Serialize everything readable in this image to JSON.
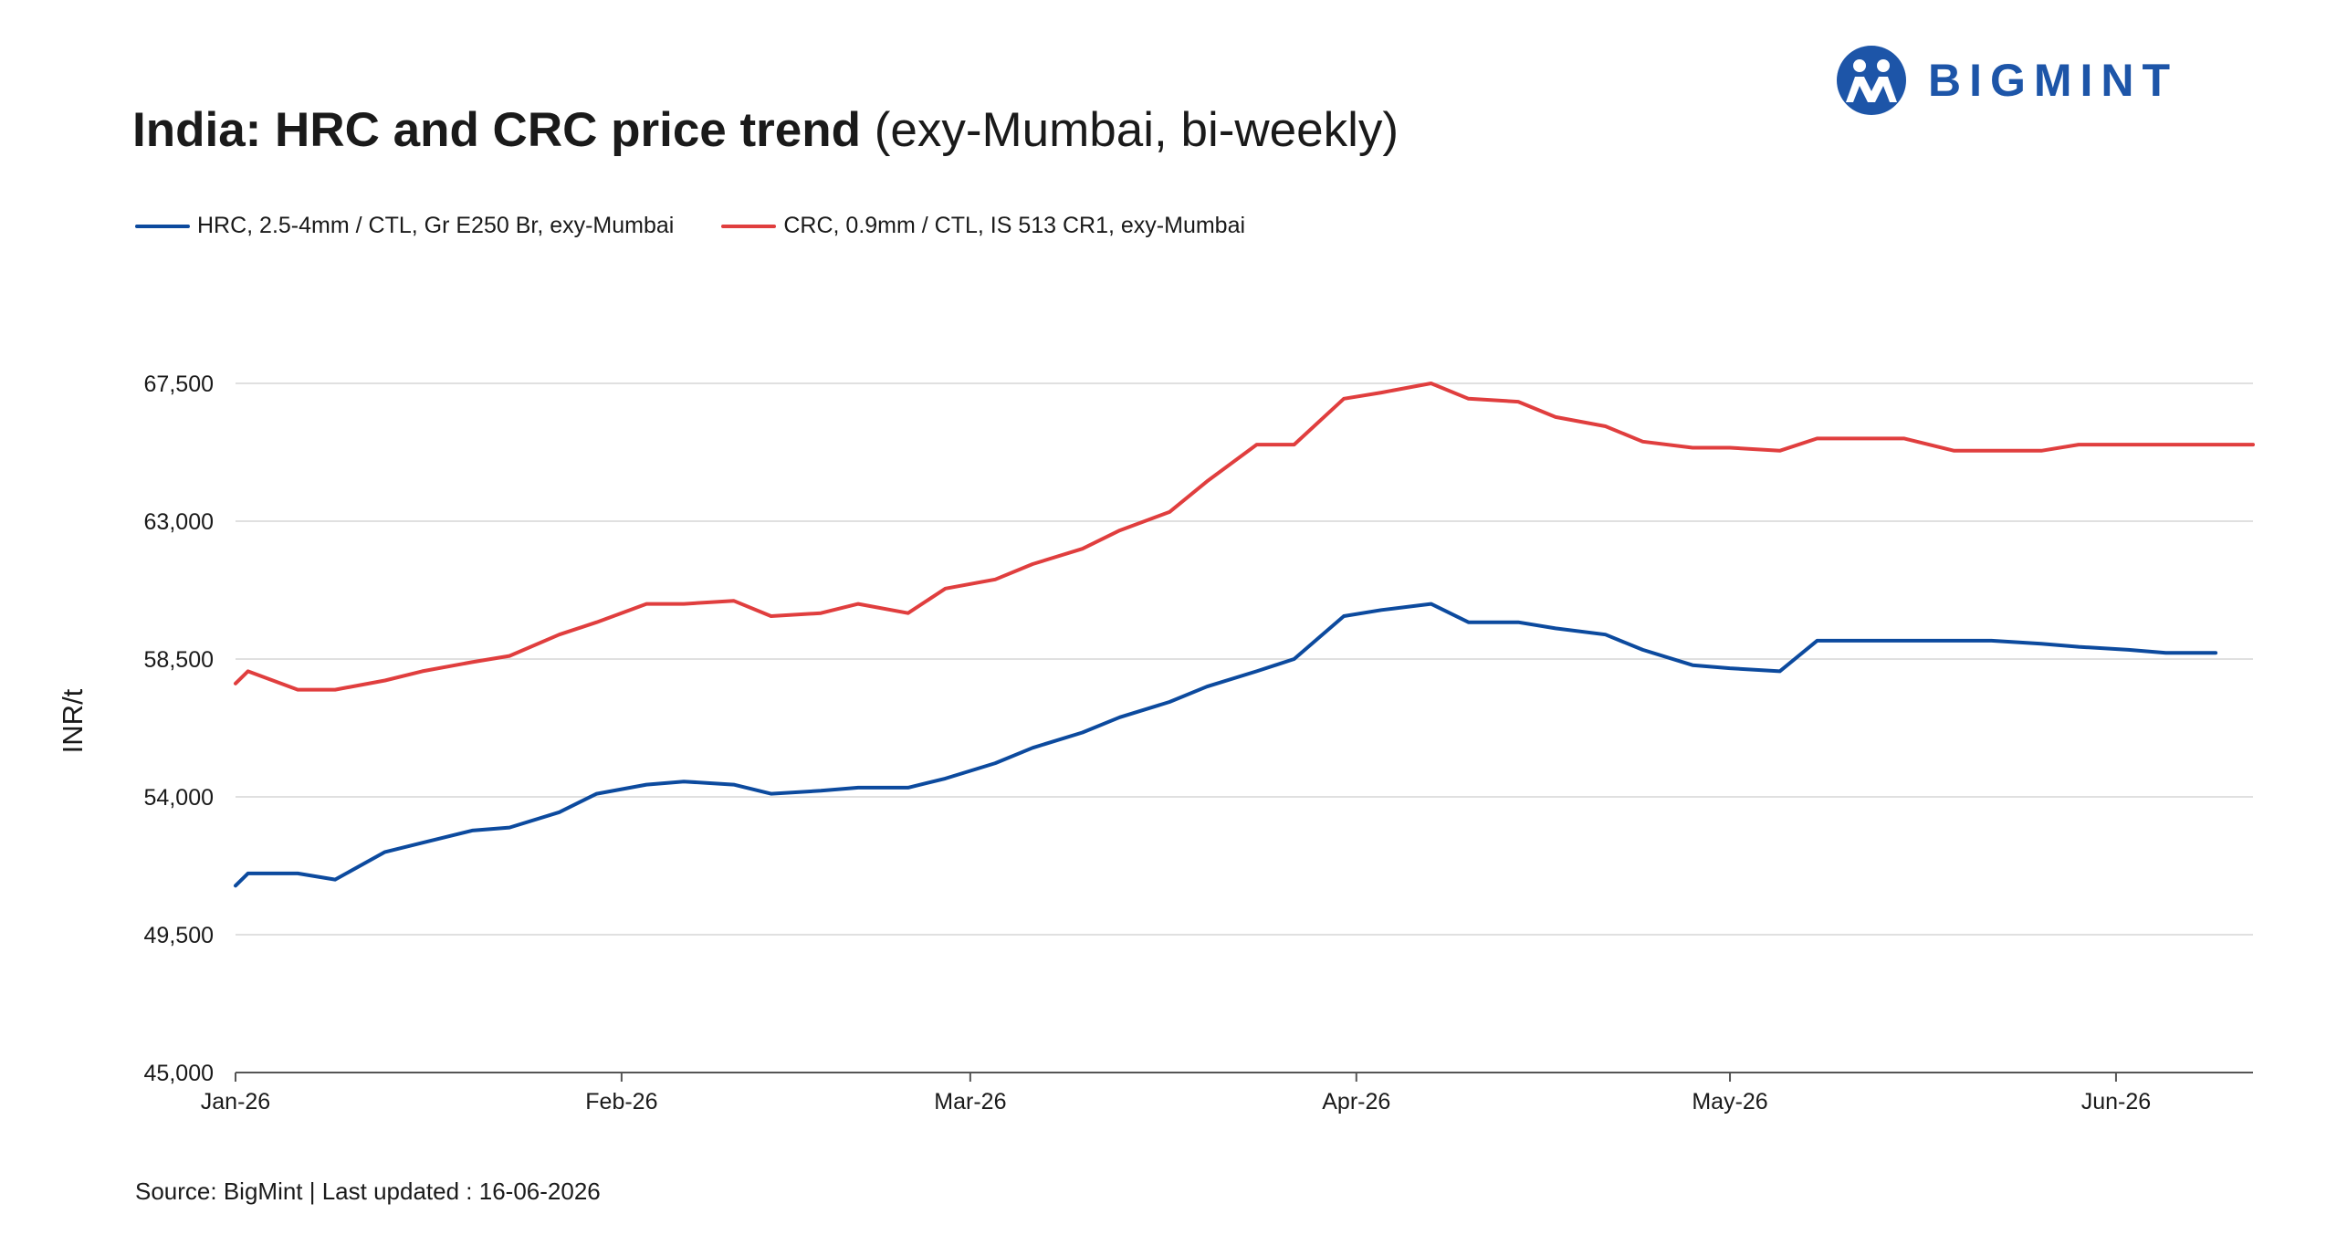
{
  "brand": {
    "name": "BIGMINT",
    "color": "#1d55a8"
  },
  "title": {
    "main": "India: HRC and CRC price trend",
    "sub": "(exy-Mumbai, bi-weekly)"
  },
  "source": "Source: BigMint | Last updated : 16-06-2026",
  "chart_data": {
    "type": "line",
    "title": "India: HRC and CRC price trend (exy-Mumbai, bi-weekly)",
    "xlabel": "",
    "ylabel": "INR/t",
    "ylim": [
      45000,
      69000
    ],
    "yticks": [
      45000,
      49500,
      54000,
      58500,
      63000,
      67500
    ],
    "ytick_labels": [
      "45,000",
      "49,500",
      "54,000",
      "58,500",
      "63,000",
      "67,500"
    ],
    "xlim": [
      "2026-01-01",
      "2026-06-12"
    ],
    "xticks": [
      {
        "date": "2026-01-01",
        "label": "Jan-26"
      },
      {
        "date": "2026-02-01",
        "label": "Feb-26"
      },
      {
        "date": "2026-03-01",
        "label": "Mar-26"
      },
      {
        "date": "2026-04-01",
        "label": "Apr-26"
      },
      {
        "date": "2026-05-01",
        "label": "May-26"
      },
      {
        "date": "2026-06-01",
        "label": "Jun-26"
      }
    ],
    "grid": "horizontal",
    "legend": "top-left",
    "series": [
      {
        "name": "HRC, 2.5-4mm / CTL, Gr E250 Br, exy-Mumbai",
        "color": "#0c4a9e",
        "points": [
          [
            "2026-01-01",
            51100
          ],
          [
            "2026-01-02",
            51500
          ],
          [
            "2026-01-06",
            51500
          ],
          [
            "2026-01-09",
            51300
          ],
          [
            "2026-01-13",
            52200
          ],
          [
            "2026-01-16",
            52500
          ],
          [
            "2026-01-20",
            52900
          ],
          [
            "2026-01-23",
            53000
          ],
          [
            "2026-01-27",
            53500
          ],
          [
            "2026-01-30",
            54100
          ],
          [
            "2026-02-03",
            54400
          ],
          [
            "2026-02-06",
            54500
          ],
          [
            "2026-02-10",
            54400
          ],
          [
            "2026-02-13",
            54100
          ],
          [
            "2026-02-17",
            54200
          ],
          [
            "2026-02-20",
            54300
          ],
          [
            "2026-02-24",
            54300
          ],
          [
            "2026-02-27",
            54600
          ],
          [
            "2026-03-03",
            55100
          ],
          [
            "2026-03-06",
            55600
          ],
          [
            "2026-03-10",
            56100
          ],
          [
            "2026-03-13",
            56600
          ],
          [
            "2026-03-17",
            57100
          ],
          [
            "2026-03-20",
            57600
          ],
          [
            "2026-03-24",
            58100
          ],
          [
            "2026-03-27",
            58500
          ],
          [
            "2026-03-31",
            59900
          ],
          [
            "2026-04-03",
            60100
          ],
          [
            "2026-04-07",
            60300
          ],
          [
            "2026-04-10",
            59700
          ],
          [
            "2026-04-14",
            59700
          ],
          [
            "2026-04-17",
            59500
          ],
          [
            "2026-04-21",
            59300
          ],
          [
            "2026-04-24",
            58800
          ],
          [
            "2026-04-28",
            58300
          ],
          [
            "2026-05-01",
            58200
          ],
          [
            "2026-05-05",
            58100
          ],
          [
            "2026-05-08",
            59100
          ],
          [
            "2026-05-12",
            59100
          ],
          [
            "2026-05-15",
            59100
          ],
          [
            "2026-05-19",
            59100
          ],
          [
            "2026-05-22",
            59100
          ],
          [
            "2026-05-26",
            59000
          ],
          [
            "2026-05-29",
            58900
          ],
          [
            "2026-06-02",
            58800
          ],
          [
            "2026-06-05",
            58700
          ],
          [
            "2026-06-09",
            58700
          ]
        ]
      },
      {
        "name": "CRC, 0.9mm / CTL, IS 513 CR1, exy-Mumbai",
        "color": "#e03e3e",
        "points": [
          [
            "2026-01-01",
            57700
          ],
          [
            "2026-01-02",
            58100
          ],
          [
            "2026-01-06",
            57500
          ],
          [
            "2026-01-09",
            57500
          ],
          [
            "2026-01-13",
            57800
          ],
          [
            "2026-01-16",
            58100
          ],
          [
            "2026-01-20",
            58400
          ],
          [
            "2026-01-23",
            58600
          ],
          [
            "2026-01-27",
            59300
          ],
          [
            "2026-01-30",
            59700
          ],
          [
            "2026-02-03",
            60300
          ],
          [
            "2026-02-06",
            60300
          ],
          [
            "2026-02-10",
            60400
          ],
          [
            "2026-02-13",
            59900
          ],
          [
            "2026-02-17",
            60000
          ],
          [
            "2026-02-20",
            60300
          ],
          [
            "2026-02-24",
            60000
          ],
          [
            "2026-02-27",
            60800
          ],
          [
            "2026-03-03",
            61100
          ],
          [
            "2026-03-06",
            61600
          ],
          [
            "2026-03-10",
            62100
          ],
          [
            "2026-03-13",
            62700
          ],
          [
            "2026-03-17",
            63300
          ],
          [
            "2026-03-20",
            64300
          ],
          [
            "2026-03-24",
            65500
          ],
          [
            "2026-03-27",
            65500
          ],
          [
            "2026-03-31",
            67000
          ],
          [
            "2026-04-03",
            67200
          ],
          [
            "2026-04-07",
            67500
          ],
          [
            "2026-04-10",
            67000
          ],
          [
            "2026-04-14",
            66900
          ],
          [
            "2026-04-17",
            66400
          ],
          [
            "2026-04-21",
            66100
          ],
          [
            "2026-04-24",
            65600
          ],
          [
            "2026-04-28",
            65400
          ],
          [
            "2026-05-01",
            65400
          ],
          [
            "2026-05-05",
            65300
          ],
          [
            "2026-05-08",
            65700
          ],
          [
            "2026-05-12",
            65700
          ],
          [
            "2026-05-15",
            65700
          ],
          [
            "2026-05-19",
            65300
          ],
          [
            "2026-05-22",
            65300
          ],
          [
            "2026-05-26",
            65300
          ],
          [
            "2026-05-29",
            65500
          ],
          [
            "2026-06-02",
            65500
          ],
          [
            "2026-06-05",
            65500
          ],
          [
            "2026-06-09",
            65500
          ],
          [
            "2026-06-12",
            65500
          ]
        ]
      }
    ]
  }
}
